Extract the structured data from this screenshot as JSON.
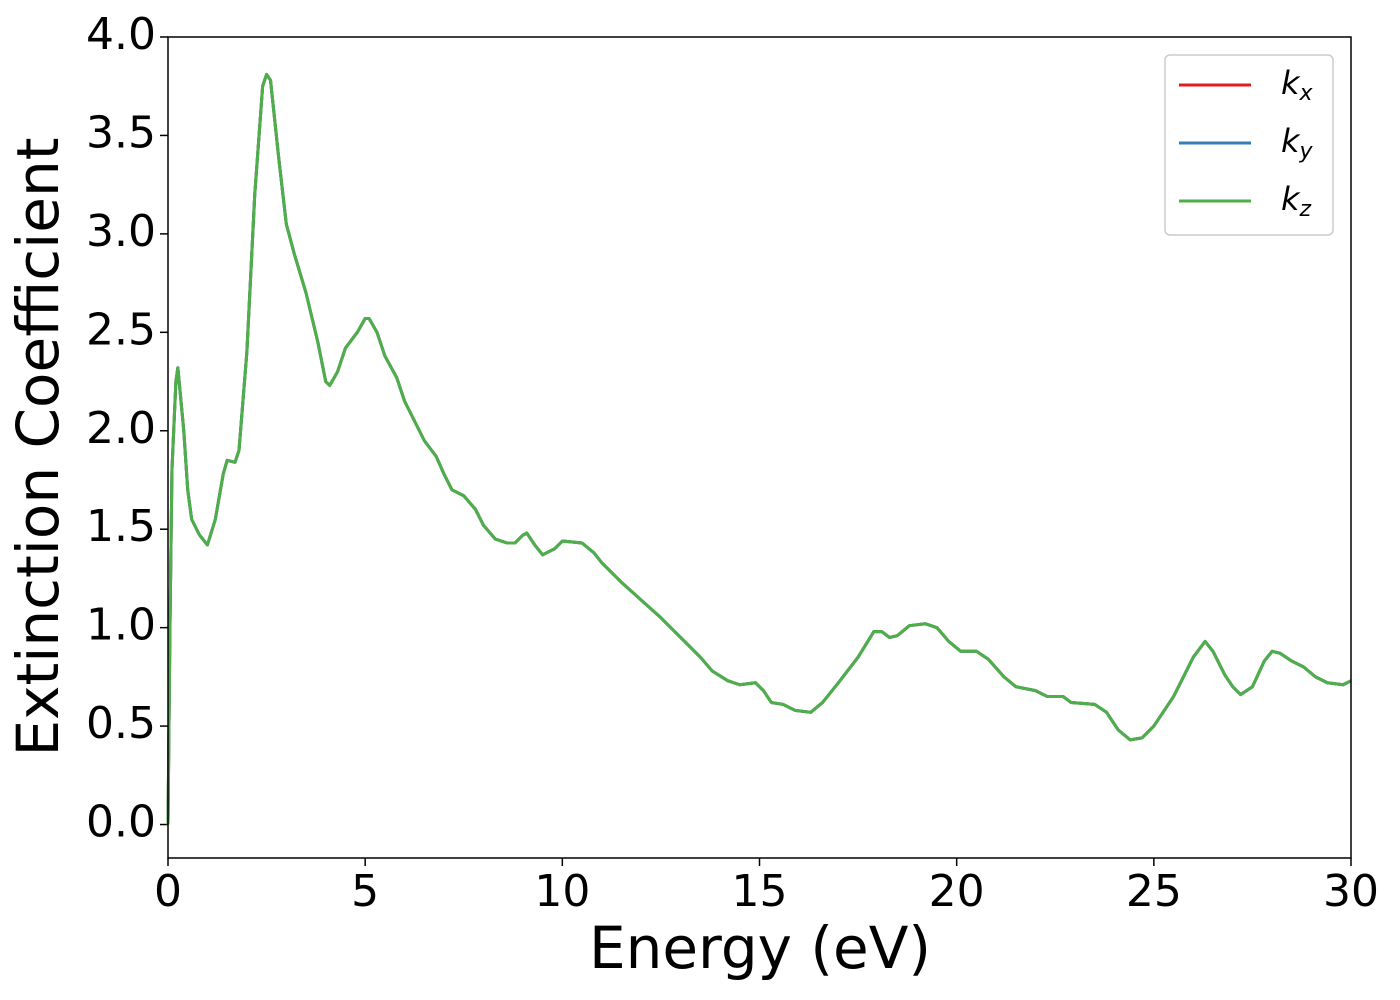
{
  "chart_data": {
    "type": "line",
    "xlabel": "Energy (eV)",
    "ylabel": "Extinction Coefficient",
    "x": [
      0,
      0.05,
      0.1,
      0.2,
      0.25,
      0.4,
      0.5,
      0.6,
      0.8,
      1.0,
      1.2,
      1.4,
      1.5,
      1.7,
      1.8,
      2.0,
      2.2,
      2.4,
      2.5,
      2.6,
      2.8,
      3.0,
      3.2,
      3.5,
      3.8,
      4.0,
      4.1,
      4.3,
      4.5,
      4.8,
      5.0,
      5.1,
      5.3,
      5.5,
      5.8,
      6.0,
      6.5,
      6.8,
      7.0,
      7.2,
      7.5,
      7.8,
      8.0,
      8.3,
      8.6,
      8.8,
      9.0,
      9.1,
      9.3,
      9.5,
      9.8,
      10.0,
      10.5,
      10.8,
      11.0,
      11.5,
      12.0,
      12.5,
      13.0,
      13.5,
      13.8,
      14.2,
      14.5,
      14.9,
      15.1,
      15.3,
      15.6,
      15.9,
      16.3,
      16.6,
      17.0,
      17.5,
      17.9,
      18.1,
      18.3,
      18.5,
      18.8,
      19.2,
      19.5,
      19.8,
      20.1,
      20.5,
      20.8,
      21.2,
      21.5,
      22.0,
      22.3,
      22.7,
      22.9,
      23.5,
      23.8,
      24.1,
      24.4,
      24.7,
      25.0,
      25.5,
      26.0,
      26.3,
      26.5,
      26.8,
      27.0,
      27.2,
      27.5,
      27.8,
      28.0,
      28.2,
      28.5,
      28.8,
      29.1,
      29.4,
      29.8,
      30.0
    ],
    "series": [
      {
        "name": "kx",
        "color": "#e41a1c",
        "values": [
          0.0,
          1.0,
          1.8,
          2.25,
          2.32,
          2.0,
          1.7,
          1.55,
          1.47,
          1.42,
          1.55,
          1.78,
          1.85,
          1.84,
          1.9,
          2.4,
          3.2,
          3.75,
          3.81,
          3.78,
          3.4,
          3.05,
          2.9,
          2.7,
          2.45,
          2.25,
          2.23,
          2.3,
          2.42,
          2.5,
          2.57,
          2.57,
          2.5,
          2.38,
          2.27,
          2.15,
          1.95,
          1.87,
          1.78,
          1.7,
          1.67,
          1.6,
          1.52,
          1.45,
          1.43,
          1.43,
          1.47,
          1.48,
          1.42,
          1.37,
          1.4,
          1.44,
          1.43,
          1.38,
          1.33,
          1.23,
          1.14,
          1.05,
          0.95,
          0.85,
          0.78,
          0.73,
          0.71,
          0.72,
          0.68,
          0.62,
          0.61,
          0.58,
          0.57,
          0.62,
          0.72,
          0.85,
          0.98,
          0.98,
          0.95,
          0.96,
          1.01,
          1.02,
          1.0,
          0.93,
          0.88,
          0.88,
          0.84,
          0.75,
          0.7,
          0.68,
          0.65,
          0.65,
          0.62,
          0.61,
          0.57,
          0.48,
          0.43,
          0.44,
          0.5,
          0.65,
          0.85,
          0.93,
          0.88,
          0.76,
          0.7,
          0.66,
          0.7,
          0.83,
          0.88,
          0.87,
          0.83,
          0.8,
          0.75,
          0.72,
          0.71,
          0.73
        ]
      },
      {
        "name": "ky",
        "color": "#377eb8",
        "values": [
          0.0,
          1.0,
          1.8,
          2.25,
          2.32,
          2.0,
          1.7,
          1.55,
          1.47,
          1.42,
          1.55,
          1.78,
          1.85,
          1.84,
          1.9,
          2.4,
          3.2,
          3.75,
          3.81,
          3.78,
          3.4,
          3.05,
          2.9,
          2.7,
          2.45,
          2.25,
          2.23,
          2.3,
          2.42,
          2.5,
          2.57,
          2.57,
          2.5,
          2.38,
          2.27,
          2.15,
          1.95,
          1.87,
          1.78,
          1.7,
          1.67,
          1.6,
          1.52,
          1.45,
          1.43,
          1.43,
          1.47,
          1.48,
          1.42,
          1.37,
          1.4,
          1.44,
          1.43,
          1.38,
          1.33,
          1.23,
          1.14,
          1.05,
          0.95,
          0.85,
          0.78,
          0.73,
          0.71,
          0.72,
          0.68,
          0.62,
          0.61,
          0.58,
          0.57,
          0.62,
          0.72,
          0.85,
          0.98,
          0.98,
          0.95,
          0.96,
          1.01,
          1.02,
          1.0,
          0.93,
          0.88,
          0.88,
          0.84,
          0.75,
          0.7,
          0.68,
          0.65,
          0.65,
          0.62,
          0.61,
          0.57,
          0.48,
          0.43,
          0.44,
          0.5,
          0.65,
          0.85,
          0.93,
          0.88,
          0.76,
          0.7,
          0.66,
          0.7,
          0.83,
          0.88,
          0.87,
          0.83,
          0.8,
          0.75,
          0.72,
          0.71,
          0.73
        ]
      },
      {
        "name": "kz",
        "color": "#4daf4a",
        "values": [
          0.0,
          1.0,
          1.8,
          2.25,
          2.32,
          2.0,
          1.7,
          1.55,
          1.47,
          1.42,
          1.55,
          1.78,
          1.85,
          1.84,
          1.9,
          2.4,
          3.2,
          3.75,
          3.81,
          3.78,
          3.4,
          3.05,
          2.9,
          2.7,
          2.45,
          2.25,
          2.23,
          2.3,
          2.42,
          2.5,
          2.57,
          2.57,
          2.5,
          2.38,
          2.27,
          2.15,
          1.95,
          1.87,
          1.78,
          1.7,
          1.67,
          1.6,
          1.52,
          1.45,
          1.43,
          1.43,
          1.47,
          1.48,
          1.42,
          1.37,
          1.4,
          1.44,
          1.43,
          1.38,
          1.33,
          1.23,
          1.14,
          1.05,
          0.95,
          0.85,
          0.78,
          0.73,
          0.71,
          0.72,
          0.68,
          0.62,
          0.61,
          0.58,
          0.57,
          0.62,
          0.72,
          0.85,
          0.98,
          0.98,
          0.95,
          0.96,
          1.01,
          1.02,
          1.0,
          0.93,
          0.88,
          0.88,
          0.84,
          0.75,
          0.7,
          0.68,
          0.65,
          0.65,
          0.62,
          0.61,
          0.57,
          0.48,
          0.43,
          0.44,
          0.5,
          0.65,
          0.85,
          0.93,
          0.88,
          0.76,
          0.7,
          0.66,
          0.7,
          0.83,
          0.88,
          0.87,
          0.83,
          0.8,
          0.75,
          0.72,
          0.71,
          0.73
        ]
      }
    ],
    "xlim": [
      0,
      30
    ],
    "xticks": [
      0,
      5,
      10,
      15,
      20,
      25,
      30
    ],
    "ylim": [
      -0.17,
      4.0
    ],
    "yticks": [
      {
        "value": 0,
        "label": "0.0"
      },
      0.5,
      {
        "value": 1,
        "label": "1.0"
      },
      1.5,
      {
        "value": 2,
        "label": "2.0"
      },
      2.5,
      {
        "value": 3,
        "label": "3.0"
      },
      3.5,
      {
        "value": 4,
        "label": "4.0"
      }
    ],
    "grid": false,
    "legend": "upper right"
  }
}
